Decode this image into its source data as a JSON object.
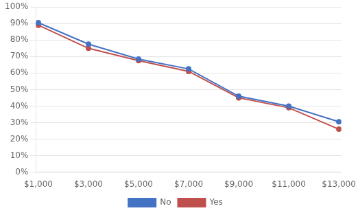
{
  "chart_data": {
    "type": "line",
    "x": [
      1000,
      3000,
      5000,
      7000,
      9000,
      11000,
      13000
    ],
    "xlim": [
      900,
      13100
    ],
    "xticks": [
      {
        "value": 1000,
        "label": "$1,000"
      },
      {
        "value": 3000,
        "label": "$3,000"
      },
      {
        "value": 5000,
        "label": "$5,000"
      },
      {
        "value": 7000,
        "label": "$7,000"
      },
      {
        "value": 9000,
        "label": "$9,000"
      },
      {
        "value": 11000,
        "label": "$11,000"
      },
      {
        "value": 13000,
        "label": "$13,000"
      }
    ],
    "ylim": [
      0,
      1.0
    ],
    "yticks": [
      {
        "value": 0.0,
        "label": "0%"
      },
      {
        "value": 0.1,
        "label": "10%"
      },
      {
        "value": 0.2,
        "label": "20%"
      },
      {
        "value": 0.3,
        "label": "30%"
      },
      {
        "value": 0.4,
        "label": "40%"
      },
      {
        "value": 0.5,
        "label": "50%"
      },
      {
        "value": 0.6,
        "label": "60%"
      },
      {
        "value": 0.7,
        "label": "70%"
      },
      {
        "value": 0.8,
        "label": "80%"
      },
      {
        "value": 0.9,
        "label": "90%"
      },
      {
        "value": 1.0,
        "label": "100%"
      }
    ],
    "grid": "y",
    "legend": "bottom",
    "series": [
      {
        "name": "No",
        "color": "#4472C4",
        "marker": "circle",
        "values": [
          0.905,
          0.775,
          0.685,
          0.625,
          0.46,
          0.4,
          0.305
        ]
      },
      {
        "name": "Yes",
        "color": "#C0504D",
        "marker": "circle",
        "values": [
          0.89,
          0.75,
          0.675,
          0.61,
          0.45,
          0.39,
          0.26
        ]
      }
    ]
  }
}
